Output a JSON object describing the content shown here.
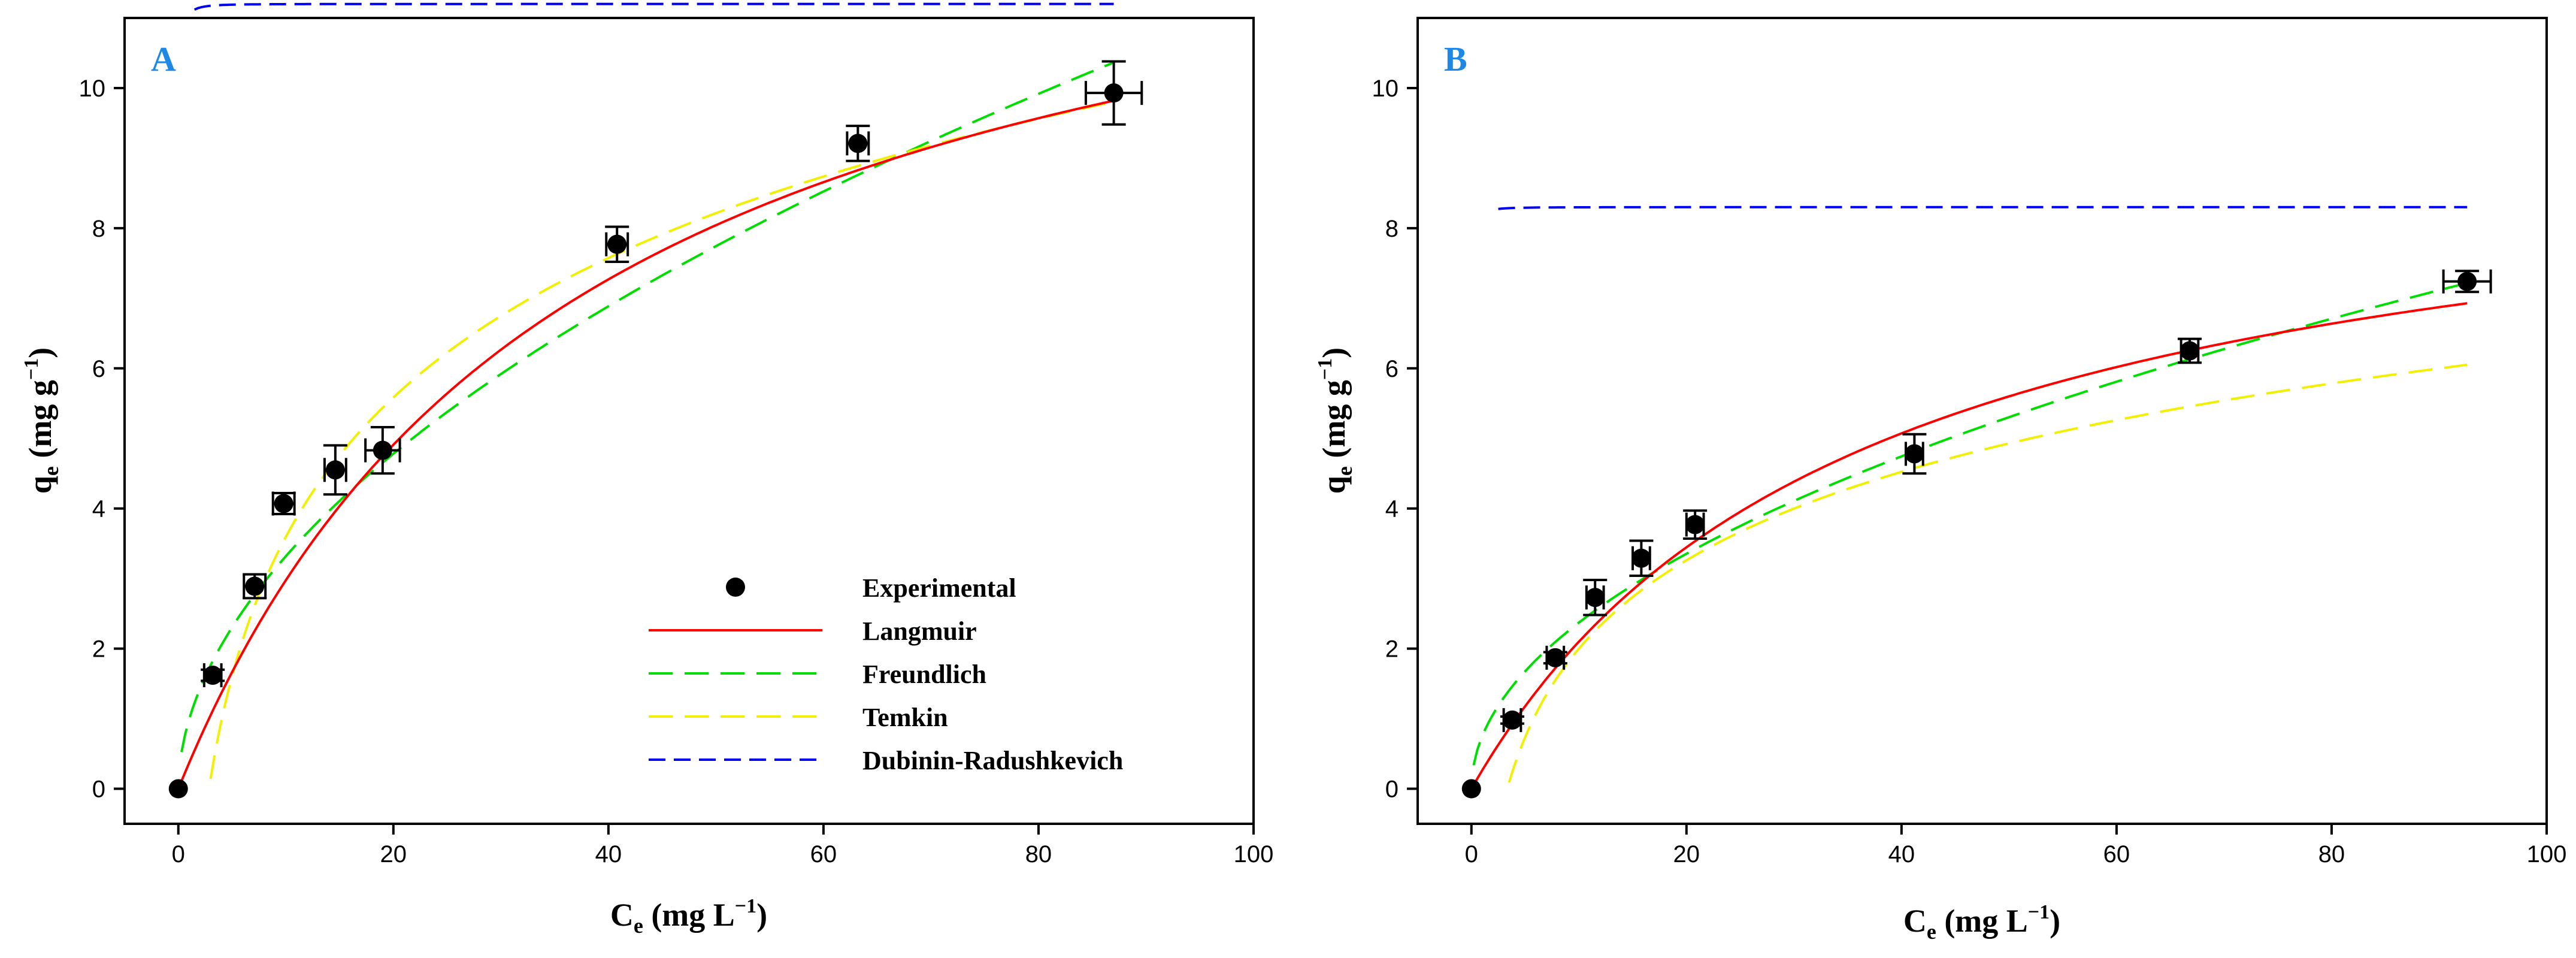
{
  "colors": {
    "experimental": "#000000",
    "langmuir": "#ff0000",
    "freundlich": "#00dd00",
    "temkin": "#f0f000",
    "dubinin": "#0000ee",
    "panel_letter": "#1e88e5"
  },
  "legend": {
    "items": [
      {
        "key": "experimental",
        "label": "Experimental"
      },
      {
        "key": "langmuir",
        "label": "Langmuir"
      },
      {
        "key": "freundlich",
        "label": "Freundlich"
      },
      {
        "key": "temkin",
        "label": "Temkin"
      },
      {
        "key": "dubinin",
        "label": "Dubinin-Radushkevich"
      }
    ]
  },
  "chart_data": [
    {
      "type": "scatter",
      "panel": "A",
      "xlabel_main": "C",
      "xlabel_sub": "e",
      "xlabel_unit": " (mg L",
      "xlabel_sup": "−1",
      "xlabel_close": ")",
      "ylabel_main": "q",
      "ylabel_sub": "e",
      "ylabel_unit": " (mg g",
      "ylabel_sup": "−1",
      "ylabel_close": ")",
      "xlim": [
        -5,
        100
      ],
      "ylim": [
        -0.5,
        11
      ],
      "xticks": [
        0,
        20,
        40,
        60,
        80,
        100
      ],
      "yticks": [
        0,
        2,
        4,
        6,
        8,
        10
      ],
      "grid": false,
      "legend_position": "lower-right",
      "experimental": {
        "x": [
          0,
          3.2,
          7.1,
          9.8,
          14.6,
          19.0,
          40.8,
          63.2,
          87.0
        ],
        "y": [
          0,
          1.62,
          2.89,
          4.07,
          4.55,
          4.83,
          7.77,
          9.21,
          9.93
        ],
        "xerr": [
          0,
          0.8,
          1.0,
          1.0,
          1.0,
          1.6,
          1.0,
          1.0,
          2.6
        ],
        "yerr": [
          0,
          0.08,
          0.17,
          0.15,
          0.35,
          0.33,
          0.25,
          0.25,
          0.45
        ]
      },
      "models": {
        "langmuir": {
          "qm": 14.0,
          "kl": 0.027
        },
        "freundlich": {
          "kf": 0.988,
          "n": 1.9
        },
        "temkin": {
          "a": 0.35,
          "b": 2.87
        },
        "dubinin": {
          "qm": 11.2,
          "k": 36
        }
      },
      "model_ranges": {
        "langmuir": [
          0,
          87
        ],
        "freundlich": [
          0.3,
          87
        ],
        "temkin": [
          3.0,
          87
        ],
        "dubinin": [
          1.5,
          87
        ]
      }
    },
    {
      "type": "scatter",
      "panel": "B",
      "xlabel_main": "C",
      "xlabel_sub": "e",
      "xlabel_unit": " (mg L",
      "xlabel_sup": "−1",
      "xlabel_close": ")",
      "ylabel_main": "q",
      "ylabel_sub": "e",
      "ylabel_unit": " (mg g",
      "ylabel_sup": "−1",
      "ylabel_close": ")",
      "xlim": [
        -5,
        100
      ],
      "ylim": [
        -0.5,
        11
      ],
      "xticks": [
        0,
        20,
        40,
        60,
        80,
        100
      ],
      "yticks": [
        0,
        2,
        4,
        6,
        8,
        10
      ],
      "grid": false,
      "experimental": {
        "x": [
          0,
          3.8,
          7.8,
          11.5,
          15.8,
          20.8,
          41.2,
          66.8,
          92.6
        ],
        "y": [
          0,
          0.98,
          1.87,
          2.73,
          3.29,
          3.77,
          4.78,
          6.25,
          7.24
        ],
        "xerr": [
          0,
          0.8,
          0.8,
          0.8,
          0.8,
          0.8,
          0.8,
          0.8,
          2.2
        ],
        "yerr": [
          0,
          0.05,
          0.08,
          0.25,
          0.25,
          0.2,
          0.28,
          0.17,
          0.15
        ]
      },
      "models": {
        "langmuir": {
          "qm": 9.6,
          "kl": 0.028
        },
        "freundlich": {
          "kf": 0.75,
          "n": 2.0
        },
        "temkin": {
          "a": 0.3,
          "b": 1.82
        },
        "dubinin": {
          "qm": 8.3,
          "k": 38
        }
      },
      "model_ranges": {
        "langmuir": [
          0,
          92.6
        ],
        "freundlich": [
          0.2,
          92.6
        ],
        "temkin": [
          3.5,
          92.6
        ],
        "dubinin": [
          2.5,
          92.6
        ]
      }
    }
  ]
}
